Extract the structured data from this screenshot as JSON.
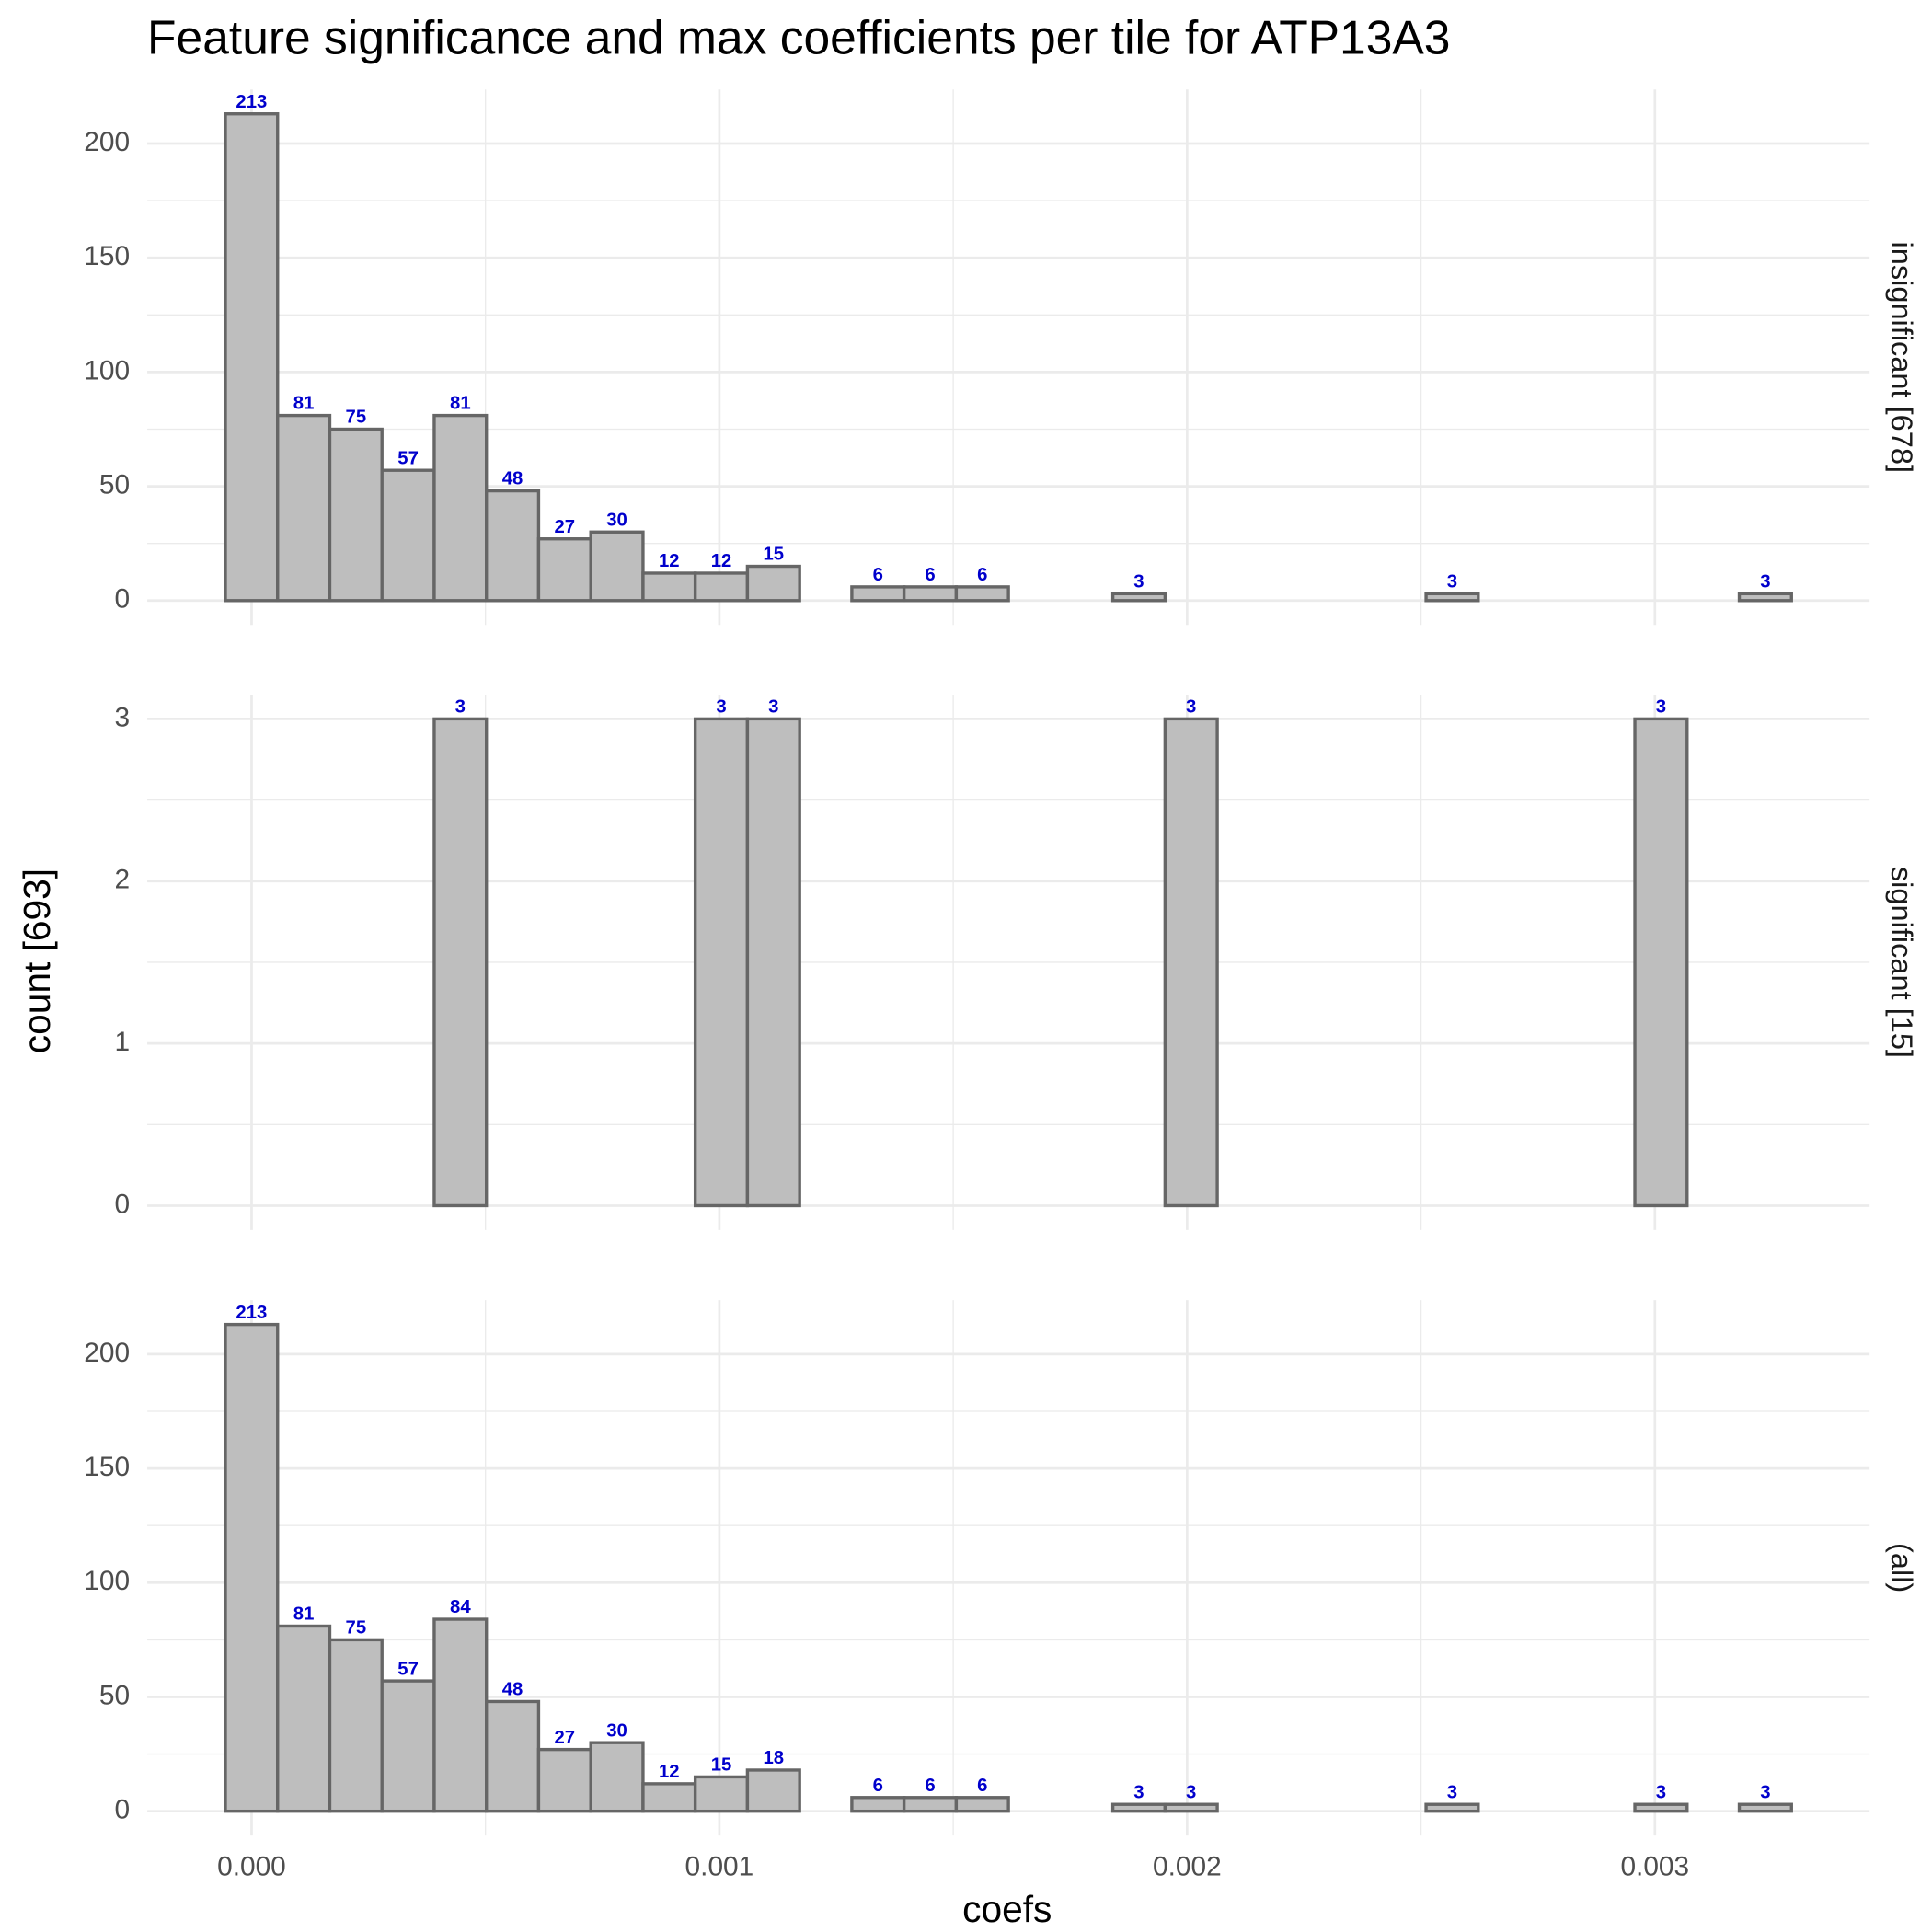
{
  "chart_data": {
    "type": "histogram",
    "title": "Feature significance and max coefficients per tile for ATP13A3",
    "x_label": "coefs",
    "y_label": "count [693]",
    "bins": [
      -5.6e-05,
      5.56e-05,
      0.0001672,
      0.0002788,
      0.0003904,
      0.000502,
      0.0006136,
      0.0007252,
      0.0008368,
      0.0009484,
      0.00106,
      0.0011716,
      0.0012832,
      0.0013948,
      0.0015064,
      0.001618,
      0.0017296,
      0.0018412,
      0.0019528,
      0.0020644,
      0.002176,
      0.0022876,
      0.0023992,
      0.0025108,
      0.0026224,
      0.002734,
      0.0028456,
      0.0029572,
      0.0030688,
      0.0031804,
      0.003292
    ],
    "xlim": [
      -0.000223,
      0.003459
    ],
    "xticks": [
      {
        "value": 0,
        "label": "0.000"
      },
      0.001,
      0.002,
      0.003
    ],
    "grid": true,
    "minor_grid": true,
    "color": "#bebebe",
    "edge_color": "#666666",
    "label_color": "#0000cc",
    "facets": [
      {
        "name": "insignificant [678]",
        "ylim": [
          -10.65,
          223.65
        ],
        "yticks": [
          0,
          50,
          100,
          150,
          200
        ],
        "values": [
          213,
          81,
          75,
          57,
          81,
          48,
          27,
          30,
          12,
          12,
          15,
          0,
          6,
          6,
          6,
          0,
          0,
          3,
          0,
          0,
          0,
          0,
          0,
          3,
          0,
          0,
          0,
          0,
          0,
          3
        ]
      },
      {
        "name": "significant [15]",
        "ylim": [
          -0.15,
          3.15
        ],
        "yticks": [
          0,
          1,
          2,
          3
        ],
        "values": [
          0,
          0,
          0,
          0,
          3,
          0,
          0,
          0,
          0,
          3,
          3,
          0,
          0,
          0,
          0,
          0,
          0,
          0,
          3,
          0,
          0,
          0,
          0,
          0,
          0,
          0,
          0,
          3,
          0,
          0
        ]
      },
      {
        "name": "(all)",
        "ylim": [
          -10.65,
          223.65
        ],
        "yticks": [
          0,
          50,
          100,
          150,
          200
        ],
        "values": [
          213,
          81,
          75,
          57,
          84,
          48,
          27,
          30,
          12,
          15,
          18,
          0,
          6,
          6,
          6,
          0,
          0,
          3,
          3,
          0,
          0,
          0,
          0,
          3,
          0,
          0,
          0,
          3,
          0,
          3
        ]
      }
    ]
  }
}
